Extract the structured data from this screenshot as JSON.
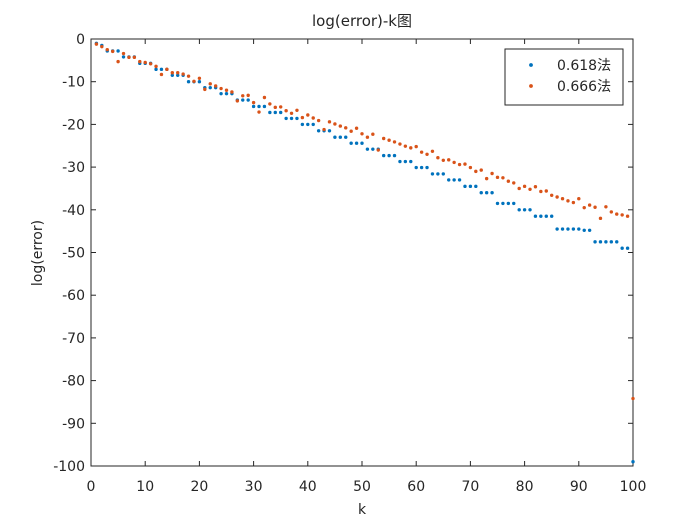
{
  "chart_data": {
    "type": "scatter",
    "title": "log(error)-k图",
    "x_label": "k",
    "y_label": "log(error)",
    "x": [
      1,
      2,
      3,
      4,
      5,
      6,
      7,
      8,
      9,
      10,
      11,
      12,
      13,
      14,
      15,
      16,
      17,
      18,
      19,
      20,
      21,
      22,
      23,
      24,
      25,
      26,
      27,
      28,
      29,
      30,
      31,
      32,
      33,
      34,
      35,
      36,
      37,
      38,
      39,
      40,
      41,
      42,
      43,
      44,
      45,
      46,
      47,
      48,
      49,
      50,
      51,
      52,
      53,
      54,
      55,
      56,
      57,
      58,
      59,
      60,
      61,
      62,
      63,
      64,
      65,
      66,
      67,
      68,
      69,
      70,
      71,
      72,
      73,
      74,
      75,
      76,
      77,
      78,
      79,
      80,
      81,
      82,
      83,
      84,
      85,
      86,
      87,
      88,
      89,
      90,
      91,
      92,
      93,
      94,
      95,
      96,
      97,
      98,
      99,
      100
    ],
    "series": [
      {
        "name": "0.618法",
        "color": "#0072bd",
        "values": [
          -1,
          -1.5,
          -2.8,
          -2.8,
          -2.8,
          -4.2,
          -4.2,
          -4.2,
          -5.7,
          -5.7,
          -5.7,
          -7.1,
          -7.1,
          -7.1,
          -8.5,
          -8.5,
          -8.5,
          -10,
          -10,
          -10,
          -11.4,
          -11.4,
          -11.4,
          -12.8,
          -12.8,
          -12.8,
          -14.3,
          -14.3,
          -14.3,
          -15.8,
          -15.8,
          -15.8,
          -17.2,
          -17.2,
          -17.2,
          -18.6,
          -18.6,
          -18.6,
          -20,
          -20,
          -20,
          -21.5,
          -21.5,
          -21.5,
          -23,
          -23,
          -23,
          -24.4,
          -24.4,
          -24.4,
          -25.8,
          -25.8,
          -25.8,
          -27.3,
          -27.3,
          -27.3,
          -28.7,
          -28.7,
          -28.7,
          -30.1,
          -30.1,
          -30.1,
          -31.6,
          -31.6,
          -31.6,
          -33,
          -33,
          -33,
          -34.5,
          -34.5,
          -34.5,
          -36,
          -36,
          -36,
          -38.5,
          -38.5,
          -38.5,
          -38.5,
          -40,
          -40,
          -40,
          -41.5,
          -41.5,
          -41.5,
          -41.5,
          -44.5,
          -44.5,
          -44.5,
          -44.5,
          -44.5,
          -44.8,
          -44.8,
          -47.5,
          -47.5,
          -47.5,
          -47.5,
          -47.5,
          -49,
          -49,
          -99
        ]
      },
      {
        "name": "0.666法",
        "color": "#d95319",
        "values": [
          -1.2,
          -1.8,
          -2.5,
          -2.9,
          -5.3,
          -3.4,
          -4.3,
          -4.3,
          -5.3,
          -5.5,
          -5.8,
          -6.4,
          -8.3,
          -7.1,
          -7.9,
          -7.9,
          -8.2,
          -8.7,
          -9.9,
          -9.2,
          -11.8,
          -10.5,
          -11,
          -11.6,
          -12,
          -12.4,
          -14.5,
          -13.3,
          -13.2,
          -14.9,
          -17.1,
          -13.7,
          -15.2,
          -16,
          -15.9,
          -16.8,
          -17.4,
          -16.7,
          -18.4,
          -17.8,
          -18.5,
          -19.1,
          -21.2,
          -19.4,
          -19.9,
          -20.4,
          -20.8,
          -21.6,
          -20.9,
          -22.2,
          -23,
          -22.3,
          -26,
          -23.3,
          -23.7,
          -24.1,
          -24.6,
          -25.1,
          -25.5,
          -25.2,
          -26.5,
          -27,
          -26.3,
          -27.8,
          -28.4,
          -28.3,
          -28.9,
          -29.4,
          -29.3,
          -30.1,
          -31,
          -30.7,
          -32.7,
          -31.5,
          -32.4,
          -32.5,
          -33.3,
          -33.7,
          -35,
          -34.5,
          -35.2,
          -34.6,
          -35.7,
          -35.6,
          -36.6,
          -37,
          -37.4,
          -37.9,
          -38.3,
          -37.4,
          -39.5,
          -38.9,
          -39.4,
          -42,
          -39.3,
          -40.5,
          -41,
          -41.2,
          -41.5,
          -84.2
        ]
      }
    ],
    "xlim": [
      0,
      100
    ],
    "xticks": [
      0,
      10,
      20,
      30,
      40,
      50,
      60,
      70,
      80,
      90,
      100
    ],
    "ylim": [
      -100,
      0
    ],
    "yticks": [
      -100,
      -90,
      -80,
      -70,
      -60,
      -50,
      -40,
      -30,
      -20,
      -10,
      0
    ],
    "grid": false,
    "legend": "upper-right"
  }
}
